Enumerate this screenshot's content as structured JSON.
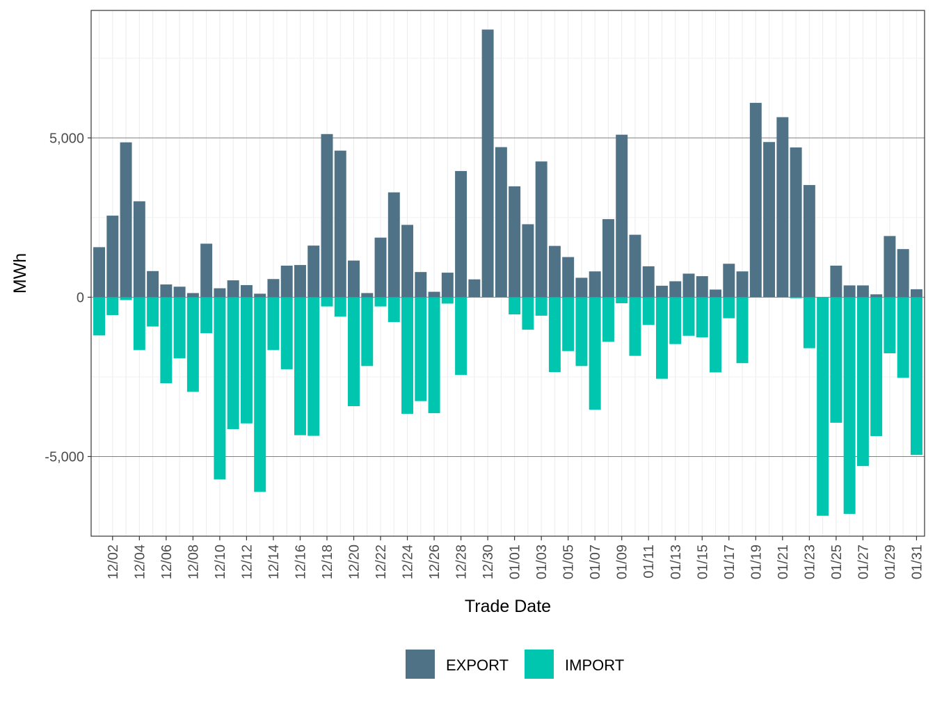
{
  "chart_data": {
    "type": "bar",
    "stacking": "diverging",
    "xlabel": "Trade Date",
    "ylabel": "MWh",
    "ylim": [
      -7500,
      9000
    ],
    "yticks": [
      -5000,
      0,
      5000
    ],
    "ytick_labels": [
      "-5,000",
      "0",
      "5,000"
    ],
    "grid": true,
    "legend_position": "bottom",
    "categories": [
      "12/01",
      "12/02",
      "12/03",
      "12/04",
      "12/05",
      "12/06",
      "12/07",
      "12/08",
      "12/09",
      "12/10",
      "12/11",
      "12/12",
      "12/13",
      "12/14",
      "12/15",
      "12/16",
      "12/17",
      "12/18",
      "12/19",
      "12/20",
      "12/21",
      "12/22",
      "12/23",
      "12/24",
      "12/25",
      "12/26",
      "12/27",
      "12/28",
      "12/29",
      "12/30",
      "12/31",
      "01/01",
      "01/02",
      "01/03",
      "01/04",
      "01/05",
      "01/06",
      "01/07",
      "01/08",
      "01/09",
      "01/10",
      "01/11",
      "01/12",
      "01/13",
      "01/14",
      "01/15",
      "01/16",
      "01/17",
      "01/18",
      "01/19",
      "01/20",
      "01/21",
      "01/22",
      "01/23",
      "01/24",
      "01/25",
      "01/26",
      "01/27",
      "01/28",
      "01/29",
      "01/30",
      "01/31"
    ],
    "tick_labels": [
      "12/02",
      "12/04",
      "12/06",
      "12/08",
      "12/10",
      "12/12",
      "12/14",
      "12/16",
      "12/18",
      "12/20",
      "12/22",
      "12/24",
      "12/26",
      "12/28",
      "12/30",
      "01/01",
      "01/03",
      "01/05",
      "01/07",
      "01/09",
      "01/11",
      "01/13",
      "01/15",
      "01/17",
      "01/19",
      "01/21",
      "01/23",
      "01/25",
      "01/27",
      "01/29",
      "01/31"
    ],
    "series": [
      {
        "name": "EXPORT",
        "color": "#4f7286",
        "values": [
          1570,
          2560,
          4860,
          3010,
          820,
          400,
          330,
          130,
          1680,
          280,
          530,
          380,
          110,
          570,
          990,
          1010,
          1620,
          5120,
          4600,
          1150,
          130,
          1870,
          3290,
          2270,
          790,
          170,
          770,
          3960,
          560,
          8400,
          4710,
          3480,
          2290,
          4260,
          1610,
          1260,
          610,
          810,
          2450,
          5100,
          1960,
          970,
          360,
          500,
          740,
          660,
          240,
          1050,
          810,
          6100,
          4870,
          5650,
          4700,
          3520,
          0,
          990,
          370,
          370,
          90,
          1920,
          1510,
          250
        ]
      },
      {
        "name": "IMPORT",
        "color": "#00c5af",
        "values": [
          -1200,
          -560,
          -90,
          -1660,
          -920,
          -2700,
          -1920,
          -2970,
          -1130,
          -5720,
          -4140,
          -3960,
          -6110,
          -1660,
          -2260,
          -4330,
          -4350,
          -290,
          -610,
          -3420,
          -2160,
          -290,
          -780,
          -3660,
          -3260,
          -3640,
          -200,
          -2440,
          0,
          0,
          0,
          -540,
          -1020,
          -580,
          -2350,
          -1690,
          -2160,
          -3530,
          -1400,
          -190,
          -1840,
          -870,
          -2560,
          -1470,
          -1210,
          -1260,
          -2360,
          -660,
          -2070,
          0,
          0,
          0,
          -30,
          -1600,
          -6860,
          -3940,
          -6800,
          -5300,
          -4360,
          -1760,
          -2530,
          -4950
        ]
      }
    ]
  }
}
